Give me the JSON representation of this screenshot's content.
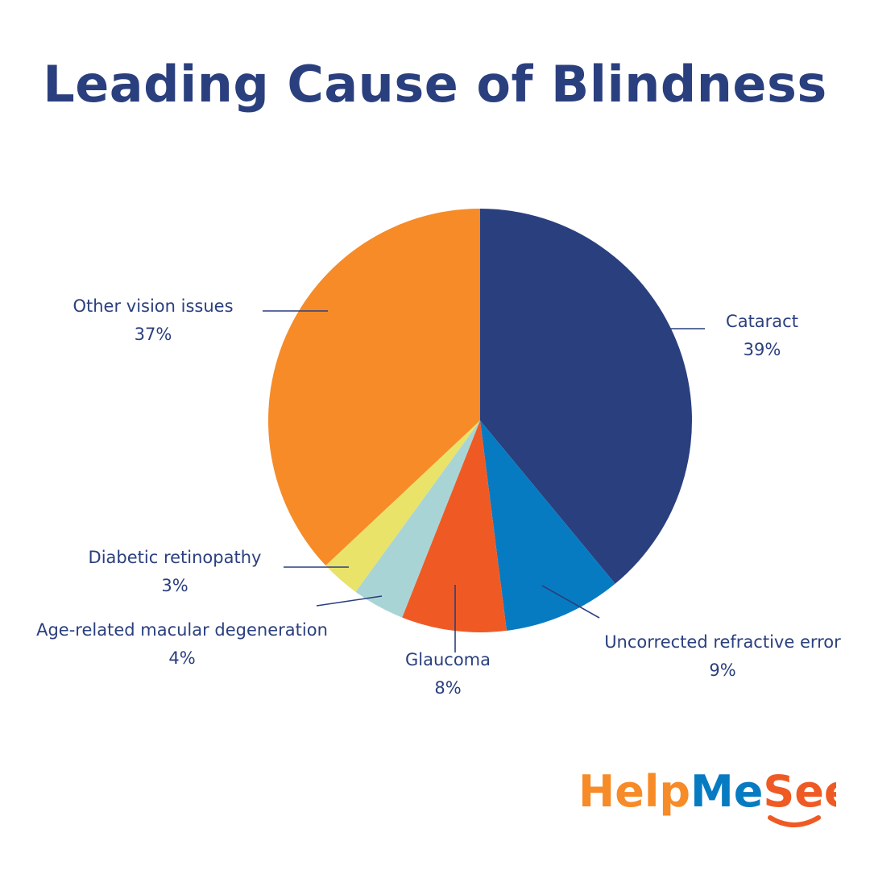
{
  "title": "Leading Cause of Blindness",
  "chart_data": {
    "type": "pie",
    "title": "Leading Cause of Blindness",
    "slices": [
      {
        "label": "Cataract",
        "value": 39,
        "value_label": "39%",
        "color": "#2a3f7e"
      },
      {
        "label": "Uncorrected refractive error",
        "value": 9,
        "value_label": "9%",
        "color": "#077bc2"
      },
      {
        "label": "Glaucoma",
        "value": 8,
        "value_label": "8%",
        "color": "#ef5a24"
      },
      {
        "label": "Age-related macular degeneration",
        "value": 4,
        "value_label": "4%",
        "color": "#a9d4d5"
      },
      {
        "label": "Diabetic retinopathy",
        "value": 3,
        "value_label": "3%",
        "color": "#e9e36a"
      },
      {
        "label": "Other vision issues",
        "value": 37,
        "value_label": "37%",
        "color": "#f68b28"
      }
    ],
    "start_angle": "12 o'clock",
    "direction": "clockwise",
    "label_color": "#2a3f7e"
  },
  "logo": {
    "text_help": "Help",
    "text_me": "Me",
    "text_see": "See",
    "colors": {
      "help": "#f68b28",
      "me": "#077bc2",
      "see": "#ef5a24"
    }
  }
}
